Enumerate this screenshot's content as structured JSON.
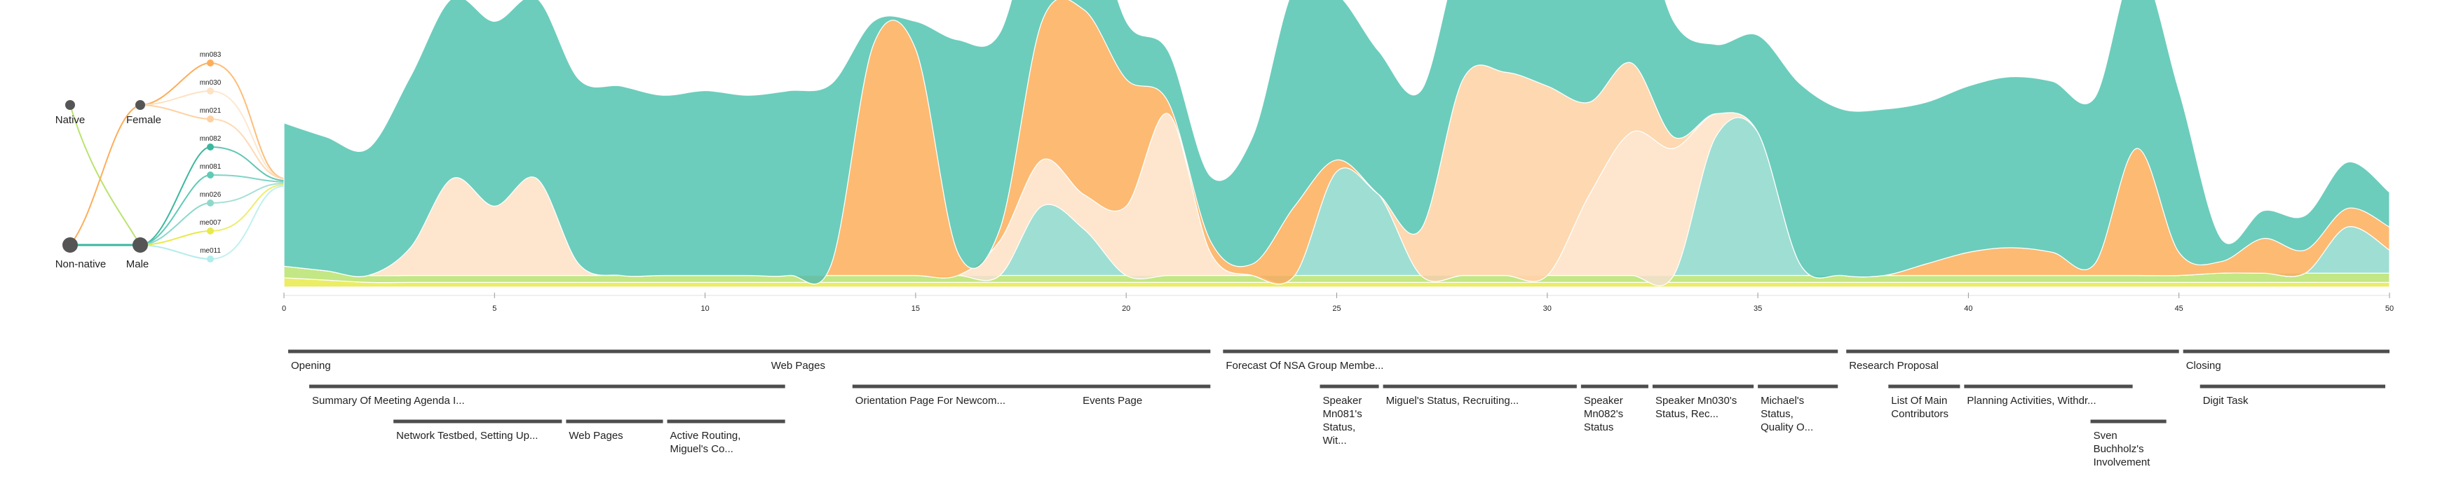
{
  "colors": {
    "teal": "#52c4b0",
    "teal_light": "#8ed8cb",
    "orange": "#fdae5a",
    "orange_light": "#fdd1a2",
    "peach": "#fde2c4",
    "yellow": "#e7ea4a",
    "lime": "#b9e36e",
    "cyan": "#7fd8e3",
    "gray_node": "#555555",
    "topic_bar": "#4d4d4d"
  },
  "left_tree": {
    "language_nodes": [
      {
        "label": "Native"
      },
      {
        "label": "Non-native"
      }
    ],
    "gender_nodes": [
      {
        "label": "Female"
      },
      {
        "label": "Male"
      }
    ],
    "speakers": [
      {
        "label": "mn083",
        "color": "#fdae5a"
      },
      {
        "label": "mn030",
        "color": "#fde2c4"
      },
      {
        "label": "mn021",
        "color": "#fdd1a2"
      },
      {
        "label": "mn082",
        "color": "#3bb79f"
      },
      {
        "label": "mn081",
        "color": "#5fcab6"
      },
      {
        "label": "mn026",
        "color": "#8ed8cb"
      },
      {
        "label": "me007",
        "color": "#e7ea4a"
      },
      {
        "label": "me011",
        "color": "#b2ecec"
      }
    ]
  },
  "chart_data": {
    "type": "area",
    "description_axis": "time segments",
    "x_ticks": [
      0,
      5,
      10,
      15,
      20,
      25,
      30,
      35,
      40,
      45,
      50
    ],
    "xlim": [
      0,
      50
    ],
    "series": [
      {
        "color": "teal",
        "values": [
          0.62,
          0.58,
          0.55,
          0.74,
          0.78,
          0.8,
          0.78,
          0.8,
          0.82,
          0.78,
          0.8,
          0.78,
          0.8,
          0.78,
          0.1,
          0.12,
          0.92,
          0.85,
          0.55,
          0.5,
          0.25,
          0.22,
          0.28,
          0.55,
          0.95,
          0.72,
          0.62,
          0.6,
          0.58,
          0.6,
          0.62,
          0.75,
          0.72,
          0.5,
          0.3,
          0.42,
          0.78,
          0.72,
          0.72,
          0.7,
          0.72,
          0.74,
          0.74,
          0.72,
          0.8,
          0.7,
          0.1,
          0.12,
          0.15,
          0.2,
          0.15
        ]
      },
      {
        "color": "orange",
        "values": [
          0,
          0,
          0,
          0,
          0,
          0,
          0,
          0,
          0,
          0,
          0,
          0,
          0,
          0.05,
          1.0,
          0.98,
          0.1,
          0.05,
          0.6,
          0.8,
          0.55,
          0.05,
          0.05,
          0.05,
          0.3,
          0.05,
          0,
          0,
          0,
          0,
          0,
          0,
          0,
          0,
          0,
          0,
          0,
          0,
          0,
          0.05,
          0.1,
          0.12,
          0.1,
          0.05,
          0.55,
          0.1,
          0.05,
          0.15,
          0.1,
          0.08,
          0.1
        ]
      },
      {
        "color": "orange_light",
        "values": [
          0,
          0,
          0,
          0,
          0,
          0,
          0,
          0,
          0,
          0,
          0,
          0,
          0,
          0,
          0,
          0,
          0,
          0,
          0,
          0,
          0,
          0,
          0,
          0,
          0,
          0,
          0,
          0.2,
          0.85,
          0.88,
          0.82,
          0.4,
          0.3,
          0.05,
          0,
          0,
          0,
          0,
          0,
          0,
          0,
          0,
          0,
          0,
          0,
          0,
          0,
          0,
          0,
          0,
          0
        ]
      },
      {
        "color": "peach",
        "values": [
          0,
          0,
          0,
          0.12,
          0.42,
          0.3,
          0.42,
          0.05,
          0,
          0,
          0,
          0,
          0,
          0,
          0,
          0,
          0,
          0.15,
          0.2,
          0.15,
          0.3,
          0.7,
          0.1,
          0,
          0,
          0,
          0,
          0,
          0,
          0,
          0,
          0.35,
          0.62,
          0.55,
          0.1,
          0,
          0,
          0,
          0,
          0,
          0,
          0,
          0,
          0,
          0,
          0,
          0,
          0,
          0,
          0,
          0
        ]
      },
      {
        "color": "teal_light",
        "values": [
          0,
          0,
          0,
          0,
          0,
          0,
          0,
          0,
          0,
          0,
          0,
          0,
          0,
          0,
          0,
          0,
          0,
          0,
          0.3,
          0.2,
          0,
          0,
          0,
          0,
          0,
          0.45,
          0.35,
          0,
          0,
          0,
          0,
          0,
          0,
          0,
          0.6,
          0.62,
          0.05,
          0,
          0,
          0,
          0,
          0,
          0,
          0,
          0,
          0,
          0,
          0,
          0,
          0.2,
          0.1
        ]
      },
      {
        "color": "lime",
        "values": [
          0.05,
          0.04,
          0.03,
          0.03,
          0.03,
          0.03,
          0.03,
          0.03,
          0.03,
          0.03,
          0.03,
          0.03,
          0.03,
          0.03,
          0.03,
          0.03,
          0.03,
          0.03,
          0.03,
          0.03,
          0.03,
          0.03,
          0.03,
          0.03,
          0.03,
          0.03,
          0.03,
          0.03,
          0.03,
          0.03,
          0.03,
          0.03,
          0.03,
          0.03,
          0.03,
          0.03,
          0.03,
          0.03,
          0.03,
          0.03,
          0.03,
          0.03,
          0.03,
          0.03,
          0.03,
          0.03,
          0.04,
          0.04,
          0.04,
          0.04,
          0.04
        ]
      },
      {
        "color": "yellow",
        "values": [
          0.04,
          0.03,
          0.02,
          0.02,
          0.02,
          0.02,
          0.02,
          0.02,
          0.02,
          0.02,
          0.02,
          0.02,
          0.02,
          0.02,
          0.02,
          0.02,
          0.02,
          0.02,
          0.02,
          0.02,
          0.02,
          0.02,
          0.02,
          0.02,
          0.02,
          0.02,
          0.02,
          0.02,
          0.02,
          0.02,
          0.02,
          0.02,
          0.02,
          0.02,
          0.02,
          0.02,
          0.02,
          0.02,
          0.02,
          0.02,
          0.02,
          0.02,
          0.02,
          0.02,
          0.02,
          0.02,
          0.02,
          0.02,
          0.02,
          0.02,
          0.02
        ]
      }
    ]
  },
  "topics": [
    {
      "row": 0,
      "start": 0.1,
      "end": 22.0,
      "label": "Opening"
    },
    {
      "row": 0,
      "start": 11.5,
      "end": 22.0,
      "label": "Web Pages",
      "no_bar": true
    },
    {
      "row": 0,
      "start": 22.3,
      "end": 36.9,
      "label": "Forecast Of NSA Group Membe..."
    },
    {
      "row": 0,
      "start": 37.1,
      "end": 45.0,
      "label": "Research Proposal"
    },
    {
      "row": 0,
      "start": 45.1,
      "end": 50.0,
      "label": "Closing"
    },
    {
      "row": 1,
      "start": 0.6,
      "end": 11.9,
      "label": "Summary Of Meeting Agenda I..."
    },
    {
      "row": 1,
      "start": 13.5,
      "end": 18.8,
      "label": "Orientation Page For Newcom...",
      "no_bar": true
    },
    {
      "row": 1,
      "start": 13.5,
      "end": 22.0,
      "label": ""
    },
    {
      "row": 1,
      "start": 18.9,
      "end": 22.0,
      "label": "Events Page",
      "no_bar": true
    },
    {
      "row": 1,
      "start": 24.6,
      "end": 26.0,
      "label": "Speaker Mn081's Status, Wit..."
    },
    {
      "row": 1,
      "start": 26.1,
      "end": 30.7,
      "label": "Miguel's Status, Recruiting..."
    },
    {
      "row": 1,
      "start": 30.8,
      "end": 32.4,
      "label": "Speaker Mn082's Status"
    },
    {
      "row": 1,
      "start": 32.5,
      "end": 34.9,
      "label": "Speaker Mn030's Status, Rec..."
    },
    {
      "row": 1,
      "start": 35.0,
      "end": 36.9,
      "label": "Michael's Status, Quality O..."
    },
    {
      "row": 1,
      "start": 38.1,
      "end": 39.8,
      "label": "List Of Main Contributors"
    },
    {
      "row": 1,
      "start": 39.9,
      "end": 43.9,
      "label": "Planning Activities, Withdr..."
    },
    {
      "row": 1,
      "start": 45.5,
      "end": 49.9,
      "label": "Digit Task"
    },
    {
      "row": 2,
      "start": 2.6,
      "end": 6.6,
      "label": "Network Testbed, Setting Up..."
    },
    {
      "row": 2,
      "start": 6.7,
      "end": 9.0,
      "label": "Web Pages"
    },
    {
      "row": 2,
      "start": 9.1,
      "end": 11.9,
      "label": "Active Routing, Miguel's Co..."
    },
    {
      "row": 2,
      "start": 42.9,
      "end": 44.7,
      "label": "Sven Buchholz's Involvement"
    }
  ]
}
